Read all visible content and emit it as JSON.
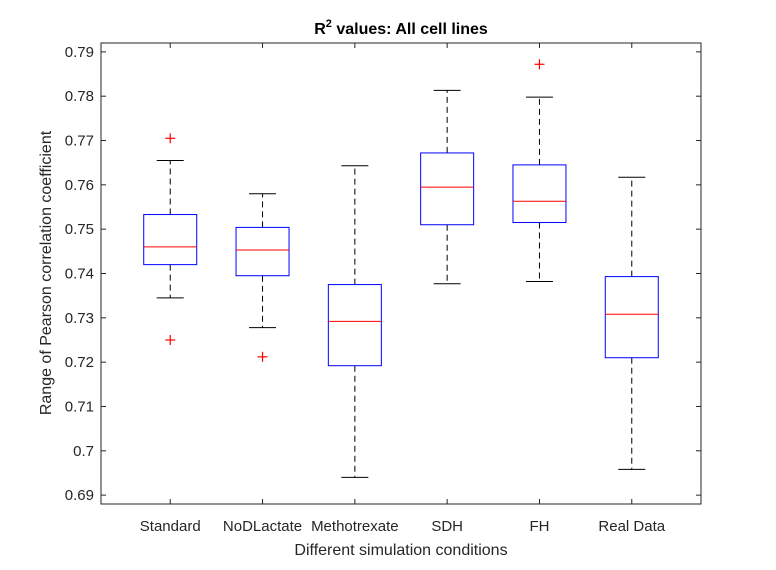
{
  "chart_data": {
    "type": "box",
    "title_prefix": "R",
    "title_superscript": "2",
    "title_suffix": " values: All cell lines",
    "xlabel": "Different simulation conditions",
    "ylabel": "Range of Pearson correlation coefficient",
    "ylim": [
      0.688,
      0.792
    ],
    "yticks": [
      0.69,
      0.7,
      0.71,
      0.72,
      0.73,
      0.74,
      0.75,
      0.76,
      0.77,
      0.78,
      0.79
    ],
    "ytick_labels": [
      "0.69",
      "0.7",
      "0.71",
      "0.72",
      "0.73",
      "0.74",
      "0.75",
      "0.76",
      "0.77",
      "0.78",
      "0.79"
    ],
    "grid": false,
    "colors": {
      "box": "#0000ff",
      "median": "#ff0000",
      "whisker": "#000000",
      "outlier": "#ff0000",
      "axis": "#262626"
    },
    "categories": [
      "Standard",
      "NoDLactate",
      "Methotrexate",
      "SDH",
      "FH",
      "Real Data"
    ],
    "boxes": [
      {
        "category": "Standard",
        "whisker_low": 0.7345,
        "q1": 0.742,
        "median": 0.746,
        "q3": 0.7533,
        "whisker_high": 0.7655,
        "outliers": [
          0.7705,
          0.725
        ]
      },
      {
        "category": "NoDLactate",
        "whisker_low": 0.7278,
        "q1": 0.7395,
        "median": 0.7453,
        "q3": 0.7504,
        "whisker_high": 0.758,
        "outliers": [
          0.7212
        ]
      },
      {
        "category": "Methotrexate",
        "whisker_low": 0.694,
        "q1": 0.7192,
        "median": 0.7292,
        "q3": 0.7375,
        "whisker_high": 0.7643,
        "outliers": []
      },
      {
        "category": "SDH",
        "whisker_low": 0.7377,
        "q1": 0.751,
        "median": 0.7595,
        "q3": 0.7672,
        "whisker_high": 0.7813,
        "outliers": []
      },
      {
        "category": "FH",
        "whisker_low": 0.7382,
        "q1": 0.7515,
        "median": 0.7563,
        "q3": 0.7645,
        "whisker_high": 0.7798,
        "outliers": [
          0.7872
        ]
      },
      {
        "category": "Real Data",
        "whisker_low": 0.6958,
        "q1": 0.721,
        "median": 0.7308,
        "q3": 0.7393,
        "whisker_high": 0.7617,
        "outliers": []
      }
    ]
  }
}
